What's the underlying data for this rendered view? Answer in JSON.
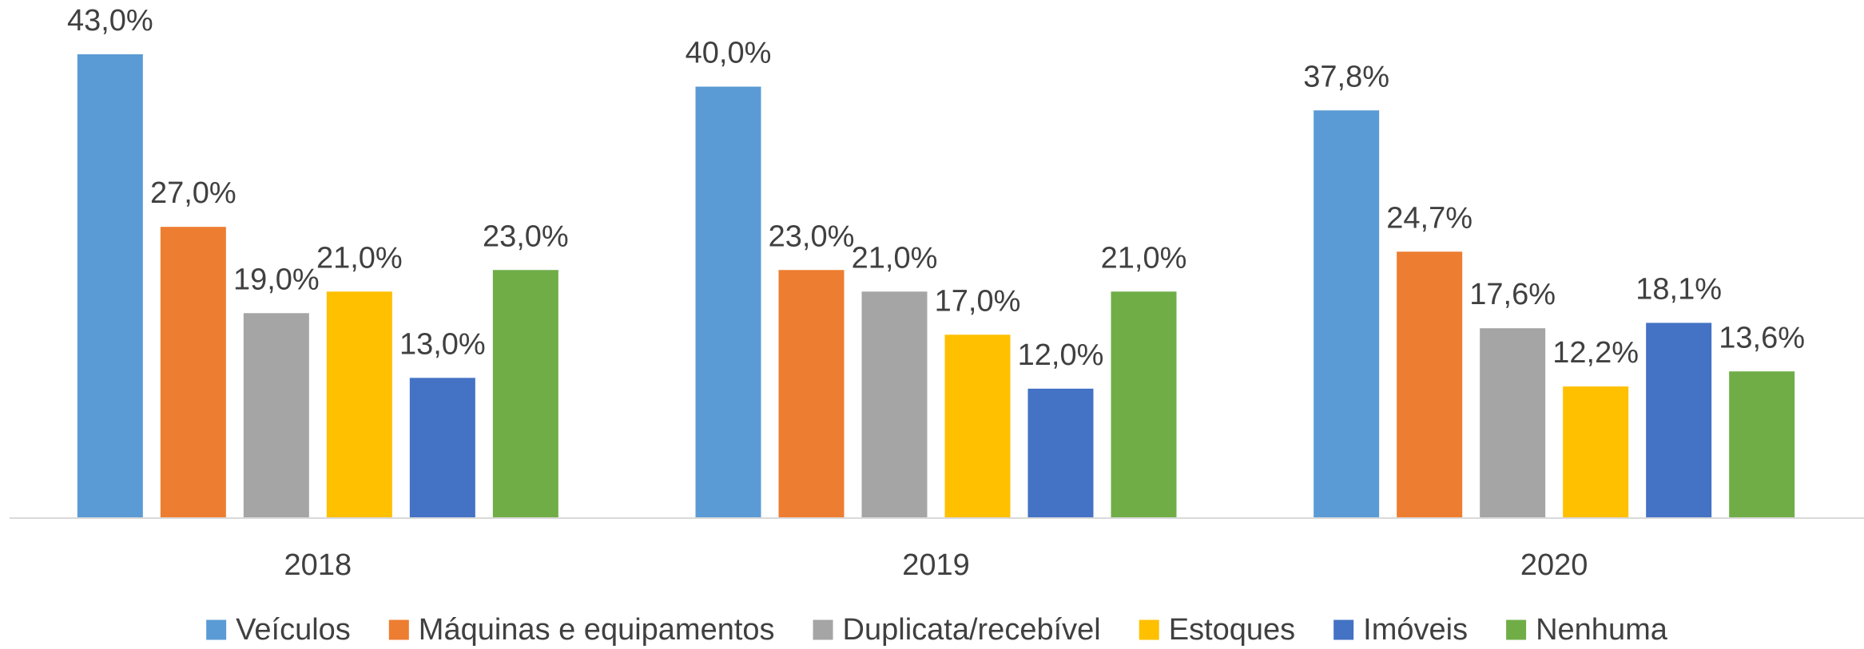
{
  "chart_data": {
    "type": "bar",
    "categories": [
      "2018",
      "2019",
      "2020"
    ],
    "series": [
      {
        "name": "Veículos",
        "color": "#5b9bd5",
        "values": [
          43.0,
          40.0,
          37.8
        ],
        "value_labels": [
          "43,0%",
          "40,0%",
          "37,8%"
        ]
      },
      {
        "name": "Máquinas e equipamentos",
        "color": "#ed7d31",
        "values": [
          27.0,
          23.0,
          24.7
        ],
        "value_labels": [
          "27,0%",
          "23,0%",
          "24,7%"
        ]
      },
      {
        "name": "Duplicata/recebível",
        "color": "#a5a5a5",
        "values": [
          19.0,
          21.0,
          17.6
        ],
        "value_labels": [
          "19,0%",
          "21,0%",
          "17,6%"
        ]
      },
      {
        "name": "Estoques",
        "color": "#ffc000",
        "values": [
          21.0,
          17.0,
          12.2
        ],
        "value_labels": [
          "21,0%",
          "17,0%",
          "12,2%"
        ]
      },
      {
        "name": "Imóveis",
        "color": "#4472c4",
        "values": [
          13.0,
          12.0,
          18.1
        ],
        "value_labels": [
          "13,0%",
          "12,0%",
          "18,1%"
        ]
      },
      {
        "name": "Nenhuma",
        "color": "#70ad47",
        "values": [
          23.0,
          21.0,
          13.6
        ],
        "value_labels": [
          "23,0%",
          "21,0%",
          "13,6%"
        ]
      }
    ],
    "legend": "bottom"
  }
}
